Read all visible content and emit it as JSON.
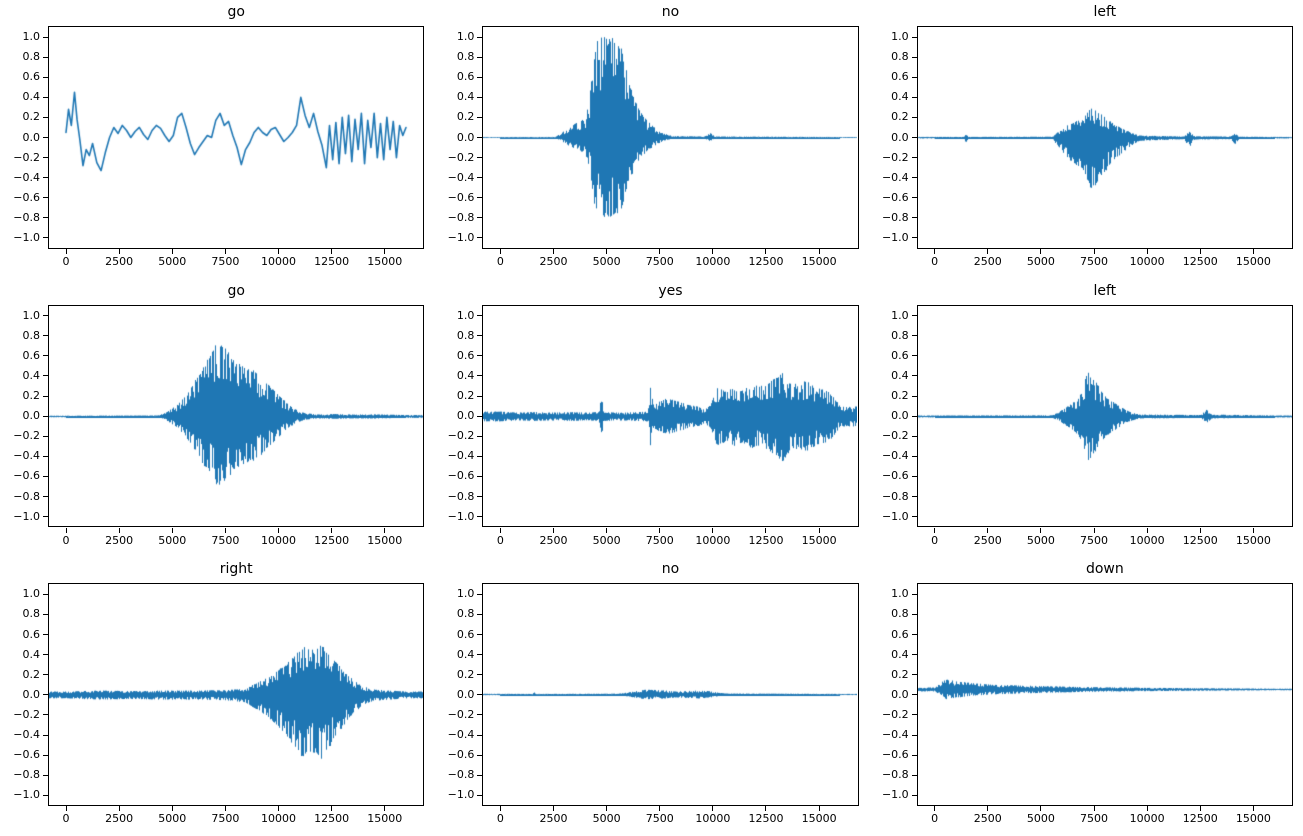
{
  "figure": {
    "background": "#ffffff",
    "line_color": "#1f77b4",
    "axis_color": "#000000"
  },
  "ticks": {
    "ylabels": [
      "1.0",
      "0.8",
      "0.6",
      "0.4",
      "0.2",
      "0.0",
      "−0.2",
      "−0.4",
      "−0.6",
      "−0.8",
      "−1.0"
    ],
    "yvalues": [
      1.0,
      0.8,
      0.6,
      0.4,
      0.2,
      0.0,
      -0.2,
      -0.4,
      -0.6,
      -0.8,
      -1.0
    ],
    "xlabels": [
      "0",
      "2500",
      "5000",
      "7500",
      "10000",
      "12500",
      "15000"
    ],
    "xvalues": [
      0,
      2500,
      5000,
      7500,
      10000,
      12500,
      15000
    ]
  },
  "chart_data": [
    {
      "type": "line",
      "title": "go",
      "style": "smooth",
      "xlim": [
        0,
        16000
      ],
      "ylim": [
        -1.0,
        1.0
      ],
      "points": [
        [
          0,
          0.05
        ],
        [
          120,
          0.28
        ],
        [
          250,
          0.12
        ],
        [
          400,
          0.45
        ],
        [
          520,
          0.18
        ],
        [
          650,
          -0.02
        ],
        [
          800,
          -0.28
        ],
        [
          950,
          -0.12
        ],
        [
          1100,
          -0.18
        ],
        [
          1250,
          -0.06
        ],
        [
          1450,
          -0.25
        ],
        [
          1650,
          -0.33
        ],
        [
          1850,
          -0.15
        ],
        [
          2050,
          0.0
        ],
        [
          2250,
          0.1
        ],
        [
          2450,
          0.04
        ],
        [
          2650,
          0.12
        ],
        [
          2850,
          0.07
        ],
        [
          3050,
          0.0
        ],
        [
          3250,
          0.06
        ],
        [
          3450,
          0.1
        ],
        [
          3650,
          0.03
        ],
        [
          3850,
          -0.02
        ],
        [
          4050,
          0.07
        ],
        [
          4250,
          0.12
        ],
        [
          4450,
          0.09
        ],
        [
          4650,
          0.02
        ],
        [
          4850,
          -0.04
        ],
        [
          5050,
          0.02
        ],
        [
          5250,
          0.2
        ],
        [
          5450,
          0.24
        ],
        [
          5650,
          0.1
        ],
        [
          5850,
          -0.06
        ],
        [
          6050,
          -0.17
        ],
        [
          6250,
          -0.1
        ],
        [
          6450,
          -0.04
        ],
        [
          6650,
          0.02
        ],
        [
          6850,
          0.0
        ],
        [
          7050,
          0.17
        ],
        [
          7250,
          0.24
        ],
        [
          7450,
          0.12
        ],
        [
          7650,
          0.16
        ],
        [
          7850,
          0.02
        ],
        [
          8050,
          -0.1
        ],
        [
          8250,
          -0.27
        ],
        [
          8450,
          -0.12
        ],
        [
          8650,
          -0.05
        ],
        [
          8850,
          0.05
        ],
        [
          9050,
          0.1
        ],
        [
          9250,
          0.05
        ],
        [
          9450,
          0.02
        ],
        [
          9650,
          0.08
        ],
        [
          9850,
          0.1
        ],
        [
          10050,
          0.03
        ],
        [
          10250,
          -0.04
        ],
        [
          10450,
          0.0
        ],
        [
          10650,
          0.05
        ],
        [
          10850,
          0.12
        ],
        [
          11050,
          0.4
        ],
        [
          11250,
          0.22
        ],
        [
          11450,
          0.1
        ],
        [
          11650,
          0.24
        ],
        [
          11850,
          0.06
        ],
        [
          12050,
          -0.08
        ],
        [
          12250,
          -0.3
        ],
        [
          12400,
          0.12
        ],
        [
          12550,
          -0.22
        ],
        [
          12700,
          0.15
        ],
        [
          12850,
          -0.26
        ],
        [
          13000,
          0.2
        ],
        [
          13150,
          -0.16
        ],
        [
          13300,
          0.22
        ],
        [
          13450,
          -0.24
        ],
        [
          13600,
          0.18
        ],
        [
          13750,
          -0.12
        ],
        [
          13900,
          0.24
        ],
        [
          14050,
          -0.26
        ],
        [
          14200,
          0.17
        ],
        [
          14350,
          -0.1
        ],
        [
          14500,
          0.24
        ],
        [
          14650,
          -0.2
        ],
        [
          14800,
          0.14
        ],
        [
          14950,
          -0.22
        ],
        [
          15100,
          0.2
        ],
        [
          15250,
          -0.12
        ],
        [
          15400,
          0.16
        ],
        [
          15550,
          -0.2
        ],
        [
          15700,
          0.12
        ],
        [
          15850,
          0.02
        ],
        [
          16000,
          0.1
        ]
      ]
    },
    {
      "type": "line",
      "title": "no",
      "style": "dense",
      "xlim": [
        0,
        16000
      ],
      "ylim": [
        -1.0,
        1.0
      ],
      "offset": 0,
      "neg_scale": 0.8,
      "envelope": [
        [
          0,
          0.005
        ],
        [
          2600,
          0.006
        ],
        [
          2900,
          0.05
        ],
        [
          3200,
          0.1
        ],
        [
          3600,
          0.15
        ],
        [
          4000,
          0.2
        ],
        [
          4200,
          0.4
        ],
        [
          4400,
          0.8
        ],
        [
          4600,
          1.0
        ],
        [
          5400,
          1.0
        ],
        [
          5700,
          0.9
        ],
        [
          6000,
          0.6
        ],
        [
          6300,
          0.4
        ],
        [
          6600,
          0.25
        ],
        [
          7000,
          0.15
        ],
        [
          7400,
          0.08
        ],
        [
          7700,
          0.04
        ],
        [
          8100,
          0.015
        ],
        [
          9600,
          0.01
        ],
        [
          9850,
          0.05
        ],
        [
          10100,
          0.01
        ],
        [
          16000,
          0.005
        ]
      ]
    },
    {
      "type": "line",
      "title": "left",
      "style": "dense",
      "xlim": [
        0,
        16000
      ],
      "ylim": [
        -1.0,
        1.0
      ],
      "offset": 0,
      "neg_scale": 1.7,
      "envelope": [
        [
          0,
          0.006
        ],
        [
          1350,
          0.006
        ],
        [
          1450,
          0.035
        ],
        [
          1550,
          0.006
        ],
        [
          5500,
          0.008
        ],
        [
          5800,
          0.06
        ],
        [
          6200,
          0.12
        ],
        [
          6600,
          0.16
        ],
        [
          7000,
          0.2
        ],
        [
          7300,
          0.3
        ],
        [
          7600,
          0.28
        ],
        [
          7900,
          0.22
        ],
        [
          8300,
          0.15
        ],
        [
          8700,
          0.1
        ],
        [
          9200,
          0.05
        ],
        [
          9600,
          0.02
        ],
        [
          11700,
          0.01
        ],
        [
          11950,
          0.06
        ],
        [
          12200,
          0.012
        ],
        [
          13900,
          0.01
        ],
        [
          14100,
          0.04
        ],
        [
          14300,
          0.008
        ],
        [
          16000,
          0.006
        ]
      ]
    },
    {
      "type": "line",
      "title": "go",
      "style": "dense",
      "xlim": [
        0,
        16000
      ],
      "ylim": [
        -1.0,
        1.0
      ],
      "offset": 0,
      "neg_scale": 0.95,
      "envelope": [
        [
          0,
          0.008
        ],
        [
          4300,
          0.01
        ],
        [
          4700,
          0.04
        ],
        [
          5100,
          0.1
        ],
        [
          5500,
          0.18
        ],
        [
          5900,
          0.3
        ],
        [
          6300,
          0.45
        ],
        [
          6700,
          0.6
        ],
        [
          7000,
          0.72
        ],
        [
          7300,
          0.75
        ],
        [
          7600,
          0.65
        ],
        [
          8000,
          0.55
        ],
        [
          8400,
          0.5
        ],
        [
          8800,
          0.47
        ],
        [
          9200,
          0.4
        ],
        [
          9600,
          0.3
        ],
        [
          10000,
          0.22
        ],
        [
          10400,
          0.13
        ],
        [
          10800,
          0.07
        ],
        [
          11200,
          0.035
        ],
        [
          11800,
          0.02
        ],
        [
          12600,
          0.025
        ],
        [
          13500,
          0.02
        ],
        [
          14500,
          0.022
        ],
        [
          16000,
          0.015
        ]
      ]
    },
    {
      "type": "line",
      "title": "yes",
      "style": "dense",
      "xlim": [
        0,
        16000
      ],
      "ylim": [
        -1.0,
        1.0
      ],
      "offset": 0,
      "neg_scale": 1.0,
      "envelope": [
        [
          0,
          0.05
        ],
        [
          800,
          0.04
        ],
        [
          1600,
          0.045
        ],
        [
          2400,
          0.04
        ],
        [
          3200,
          0.045
        ],
        [
          4000,
          0.04
        ],
        [
          4650,
          0.045
        ],
        [
          4750,
          0.25
        ],
        [
          4850,
          0.045
        ],
        [
          5600,
          0.04
        ],
        [
          6400,
          0.045
        ],
        [
          6950,
          0.05
        ],
        [
          7050,
          0.3
        ],
        [
          7200,
          0.12
        ],
        [
          7500,
          0.15
        ],
        [
          7800,
          0.18
        ],
        [
          8100,
          0.17
        ],
        [
          8400,
          0.15
        ],
        [
          8700,
          0.13
        ],
        [
          9000,
          0.11
        ],
        [
          9300,
          0.1
        ],
        [
          9600,
          0.07
        ],
        [
          9900,
          0.12
        ],
        [
          10200,
          0.3
        ],
        [
          10600,
          0.25
        ],
        [
          11000,
          0.3
        ],
        [
          11400,
          0.27
        ],
        [
          11800,
          0.32
        ],
        [
          12200,
          0.3
        ],
        [
          12600,
          0.33
        ],
        [
          13000,
          0.4
        ],
        [
          13300,
          0.45
        ],
        [
          13600,
          0.35
        ],
        [
          14000,
          0.32
        ],
        [
          14400,
          0.36
        ],
        [
          14800,
          0.3
        ],
        [
          15200,
          0.28
        ],
        [
          15600,
          0.22
        ],
        [
          16000,
          0.1
        ]
      ]
    },
    {
      "type": "line",
      "title": "left",
      "style": "dense",
      "xlim": [
        0,
        16000
      ],
      "ylim": [
        -1.0,
        1.0
      ],
      "offset": 0,
      "neg_scale": 1.0,
      "envelope": [
        [
          0,
          0.01
        ],
        [
          5500,
          0.012
        ],
        [
          5850,
          0.05
        ],
        [
          6200,
          0.1
        ],
        [
          6600,
          0.16
        ],
        [
          6900,
          0.25
        ],
        [
          7150,
          0.45
        ],
        [
          7400,
          0.4
        ],
        [
          7700,
          0.3
        ],
        [
          8000,
          0.2
        ],
        [
          8300,
          0.16
        ],
        [
          8700,
          0.1
        ],
        [
          9100,
          0.05
        ],
        [
          9600,
          0.02
        ],
        [
          12500,
          0.015
        ],
        [
          12750,
          0.07
        ],
        [
          13000,
          0.02
        ],
        [
          16000,
          0.01
        ]
      ]
    },
    {
      "type": "line",
      "title": "right",
      "style": "dense",
      "xlim": [
        0,
        16000
      ],
      "ylim": [
        -1.0,
        1.0
      ],
      "offset": 0,
      "neg_scale": 1.3,
      "envelope": [
        [
          0,
          0.03
        ],
        [
          1500,
          0.04
        ],
        [
          3000,
          0.035
        ],
        [
          4500,
          0.04
        ],
        [
          6000,
          0.04
        ],
        [
          7500,
          0.045
        ],
        [
          8400,
          0.06
        ],
        [
          8800,
          0.1
        ],
        [
          9300,
          0.15
        ],
        [
          9800,
          0.22
        ],
        [
          10300,
          0.3
        ],
        [
          10800,
          0.42
        ],
        [
          11200,
          0.5
        ],
        [
          11600,
          0.45
        ],
        [
          12000,
          0.5
        ],
        [
          12400,
          0.4
        ],
        [
          12800,
          0.3
        ],
        [
          13200,
          0.2
        ],
        [
          13600,
          0.13
        ],
        [
          14000,
          0.08
        ],
        [
          14500,
          0.05
        ],
        [
          15200,
          0.04
        ],
        [
          16000,
          0.03
        ]
      ]
    },
    {
      "type": "line",
      "title": "no",
      "style": "dense",
      "xlim": [
        0,
        16000
      ],
      "ylim": [
        -1.0,
        1.0
      ],
      "offset": 0,
      "neg_scale": 1.0,
      "envelope": [
        [
          0,
          0.007
        ],
        [
          1500,
          0.006
        ],
        [
          1600,
          0.02
        ],
        [
          1700,
          0.006
        ],
        [
          5300,
          0.008
        ],
        [
          5800,
          0.015
        ],
        [
          6300,
          0.03
        ],
        [
          6800,
          0.05
        ],
        [
          7300,
          0.045
        ],
        [
          7800,
          0.04
        ],
        [
          8300,
          0.03
        ],
        [
          8800,
          0.035
        ],
        [
          9300,
          0.04
        ],
        [
          9800,
          0.035
        ],
        [
          10200,
          0.02
        ],
        [
          10600,
          0.01
        ],
        [
          16000,
          0.006
        ]
      ]
    },
    {
      "type": "line",
      "title": "down",
      "style": "dense",
      "xlim": [
        0,
        16000
      ],
      "ylim": [
        -1.0,
        1.0
      ],
      "offset": 0.05,
      "neg_scale": 1.0,
      "envelope": [
        [
          0,
          0.02
        ],
        [
          250,
          0.07
        ],
        [
          500,
          0.1
        ],
        [
          800,
          0.09
        ],
        [
          1100,
          0.08
        ],
        [
          1500,
          0.07
        ],
        [
          2000,
          0.06
        ],
        [
          2600,
          0.05
        ],
        [
          3300,
          0.045
        ],
        [
          4000,
          0.04
        ],
        [
          5000,
          0.035
        ],
        [
          6000,
          0.03
        ],
        [
          7000,
          0.025
        ],
        [
          8000,
          0.022
        ],
        [
          9000,
          0.02
        ],
        [
          10000,
          0.017
        ],
        [
          11500,
          0.014
        ],
        [
          13000,
          0.012
        ],
        [
          14500,
          0.01
        ],
        [
          16000,
          0.008
        ]
      ]
    }
  ]
}
